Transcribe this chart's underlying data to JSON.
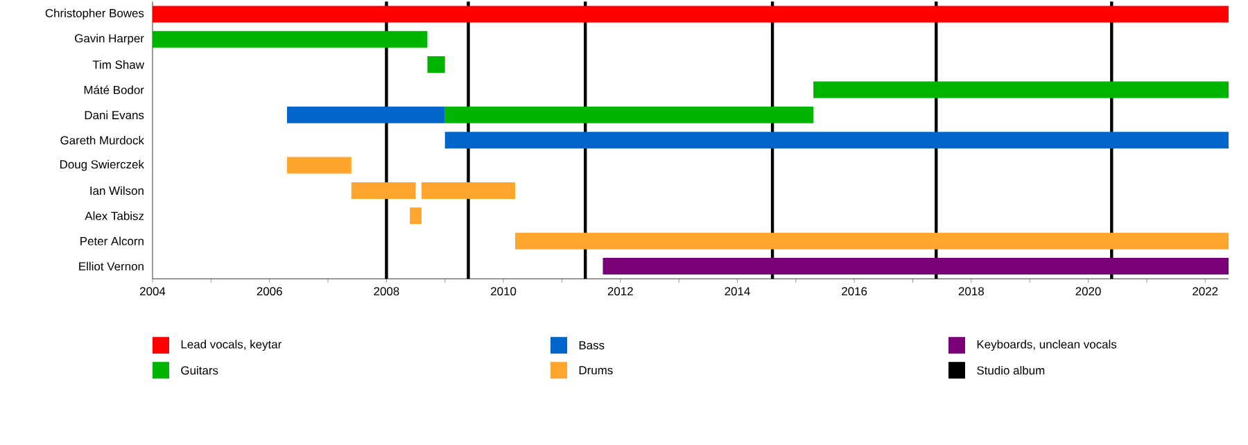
{
  "chart_data": {
    "type": "bar",
    "orientation": "horizontal",
    "legend": "bottom",
    "categories": [
      "Christopher Bowes",
      "Gavin Harper",
      "Tim Shaw",
      "Máté Bodor",
      "Dani Evans",
      "Gareth Murdock",
      "Doug Swierczek",
      "Ian Wilson",
      "Alex Tabisz",
      "Peter Alcorn",
      "Elliot Vernon"
    ],
    "xlim": [
      2004,
      2022.4
    ],
    "xticks": [
      2004,
      {
        "value": 2005,
        "label": null
      },
      2006,
      {
        "value": 2007,
        "label": null
      },
      2008,
      {
        "value": 2009,
        "label": null
      },
      2010,
      {
        "value": 2011,
        "label": null
      },
      2012,
      {
        "value": 2013,
        "label": null
      },
      2014,
      {
        "value": 2015,
        "label": null
      },
      2016,
      {
        "value": 2017,
        "label": null
      },
      2018,
      {
        "value": 2019,
        "label": null
      },
      2020,
      {
        "value": 2021,
        "label": null
      },
      2022
    ],
    "series": [
      {
        "name": "Lead vocals, keytar",
        "color": "#ff0000",
        "base": [
          2004,
          null,
          null,
          null,
          null,
          null,
          null,
          null,
          null,
          null,
          null
        ],
        "values": [
          18.4,
          null,
          null,
          null,
          null,
          null,
          null,
          null,
          null,
          null,
          null
        ]
      },
      {
        "name": "Guitars",
        "color": "#00b400",
        "base": [
          null,
          2004,
          2008.7,
          2015.3,
          2009.0,
          null,
          null,
          null,
          null,
          null,
          null
        ],
        "values": [
          null,
          4.7,
          0.3,
          7.1,
          6.3,
          null,
          null,
          null,
          null,
          null,
          null
        ]
      },
      {
        "name": "Bass",
        "color": "#0066cc",
        "base": [
          null,
          null,
          null,
          null,
          2006.3,
          2009.0,
          null,
          null,
          null,
          null,
          null
        ],
        "values": [
          null,
          null,
          null,
          null,
          2.7,
          13.4,
          null,
          null,
          null,
          null,
          null
        ]
      },
      {
        "name": "Drums",
        "color": "#ffa52e",
        "base": [
          null,
          null,
          null,
          null,
          null,
          null,
          2006.3,
          2007.4,
          2008.4,
          2010.2,
          null
        ],
        "values": [
          null,
          null,
          null,
          null,
          null,
          null,
          1.1,
          1.1,
          0.2,
          12.2,
          null
        ]
      },
      {
        "color": "#ffa52e",
        "base": [
          null,
          null,
          null,
          null,
          null,
          null,
          null,
          2008.6,
          null,
          null,
          null
        ],
        "values": [
          null,
          null,
          null,
          null,
          null,
          null,
          null,
          1.6,
          null,
          null,
          null
        ]
      },
      {
        "name": "Keyboards, unclean vocals",
        "color": "#7a007a",
        "base": [
          null,
          null,
          null,
          null,
          null,
          null,
          null,
          null,
          null,
          null,
          2011.7
        ],
        "values": [
          null,
          null,
          null,
          null,
          null,
          null,
          null,
          null,
          null,
          null,
          10.7
        ]
      }
    ],
    "ref_lines": [
      {
        "axis": "x",
        "value": 2008.0,
        "label": "Studio album",
        "color": "#000000"
      },
      {
        "axis": "x",
        "value": 2009.4,
        "color": "#000000"
      },
      {
        "axis": "x",
        "value": 2011.4,
        "color": "#000000"
      },
      {
        "axis": "x",
        "value": 2014.6,
        "color": "#000000"
      },
      {
        "axis": "x",
        "value": 2017.4,
        "color": "#000000"
      },
      {
        "axis": "x",
        "value": 2020.4,
        "color": "#000000"
      }
    ]
  }
}
